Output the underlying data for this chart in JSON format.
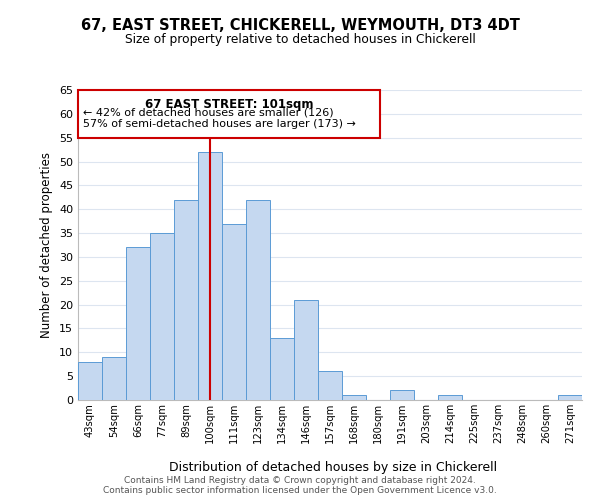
{
  "title": "67, EAST STREET, CHICKERELL, WEYMOUTH, DT3 4DT",
  "subtitle": "Size of property relative to detached houses in Chickerell",
  "xlabel": "Distribution of detached houses by size in Chickerell",
  "ylabel": "Number of detached properties",
  "bar_labels": [
    "43sqm",
    "54sqm",
    "66sqm",
    "77sqm",
    "89sqm",
    "100sqm",
    "111sqm",
    "123sqm",
    "134sqm",
    "146sqm",
    "157sqm",
    "168sqm",
    "180sqm",
    "191sqm",
    "203sqm",
    "214sqm",
    "225sqm",
    "237sqm",
    "248sqm",
    "260sqm",
    "271sqm"
  ],
  "bar_values": [
    8,
    9,
    32,
    35,
    42,
    52,
    37,
    42,
    13,
    21,
    6,
    1,
    0,
    2,
    0,
    1,
    0,
    0,
    0,
    0,
    1
  ],
  "highlight_index": 5,
  "bar_color": "#c5d8f0",
  "bar_edge_color": "#5b9bd5",
  "highlight_line_color": "#cc0000",
  "ylim": [
    0,
    65
  ],
  "yticks": [
    0,
    5,
    10,
    15,
    20,
    25,
    30,
    35,
    40,
    45,
    50,
    55,
    60,
    65
  ],
  "annotation_title": "67 EAST STREET: 101sqm",
  "annotation_line1": "← 42% of detached houses are smaller (126)",
  "annotation_line2": "57% of semi-detached houses are larger (173) →",
  "annotation_box_color": "#ffffff",
  "annotation_box_edge": "#cc0000",
  "footer_line1": "Contains HM Land Registry data © Crown copyright and database right 2024.",
  "footer_line2": "Contains public sector information licensed under the Open Government Licence v3.0.",
  "bg_color": "#ffffff",
  "grid_color": "#dde5f0"
}
